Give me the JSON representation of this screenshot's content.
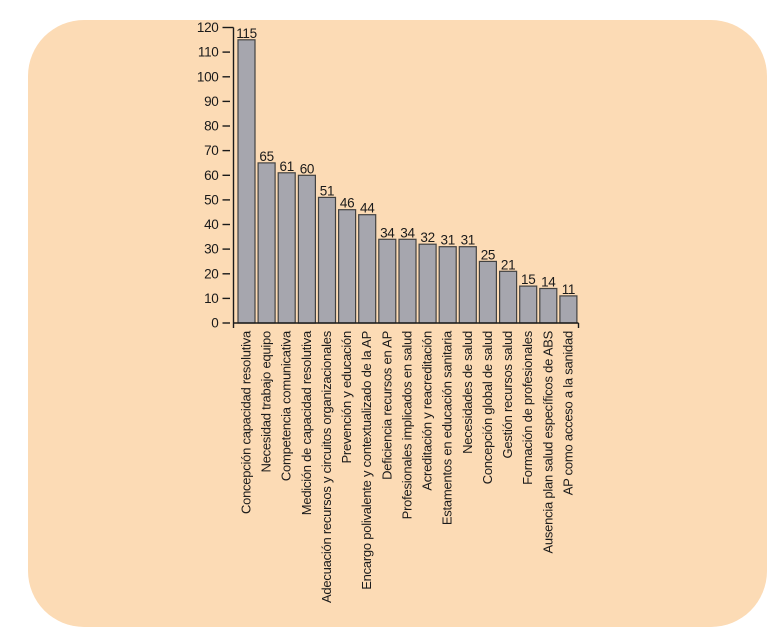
{
  "panel": {
    "background_color": "#fcdbb5"
  },
  "chart_data": {
    "type": "bar",
    "title": "",
    "xlabel": "",
    "ylabel": "",
    "categories": [
      "Concepción capacidad resolutiva",
      "Necesidad trabajo equipo",
      "Competencia comunicativa",
      "Medición de capacidad resolutiva",
      "Adecuación recursos y circuitos organizacionales",
      "Prevención y educación",
      "Encargo polivalente y contextualizado de la AP",
      "Deficiencia recursos en AP",
      "Profesionales implicados en salud",
      "Acreditación y reacreditación",
      "Estamentos en educación sanitaria",
      "Necesidades de salud",
      "Concepción global de salud",
      "Gestión recursos salud",
      "Formación de profesionales",
      "Ausencia plan salud específicos de ABS",
      "AP como acceso a la sanidad"
    ],
    "values": [
      115,
      65,
      61,
      60,
      51,
      46,
      44,
      34,
      34,
      32,
      31,
      31,
      25,
      21,
      15,
      14,
      11
    ],
    "value_labels_shown": true,
    "yticks": [
      0,
      10,
      20,
      30,
      40,
      50,
      60,
      70,
      80,
      90,
      100,
      110,
      120
    ],
    "ylim": [
      0,
      120
    ],
    "grid": false,
    "legend": false,
    "bar_fill": "#a6a6ae",
    "bar_stroke": "#424242",
    "axis_color": "#1a1a1a",
    "text_color": "#1a1a1a"
  }
}
